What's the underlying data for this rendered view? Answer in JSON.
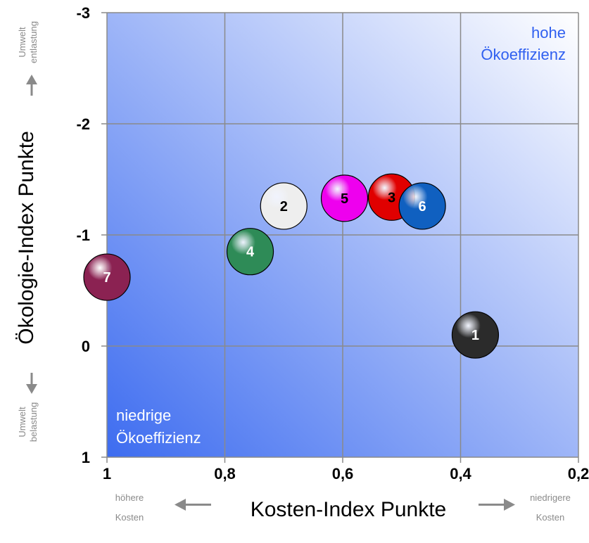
{
  "chart_data": {
    "type": "scatter",
    "title": "",
    "xlabel": "Kosten-Index Punkte",
    "ylabel": "Ökologie-Index Punkte",
    "xlim": [
      1.0,
      0.2
    ],
    "ylim": [
      1,
      -3
    ],
    "x_reversed": true,
    "y_reversed": true,
    "grid": true,
    "x_ticks": [
      1.0,
      0.8,
      0.6,
      0.4,
      0.2
    ],
    "y_ticks": [
      -3,
      -2,
      -1,
      0,
      1
    ],
    "x_tick_labels": [
      "1",
      "0,8",
      "0,6",
      "0,4",
      "0,2"
    ],
    "y_tick_labels": [
      "-3",
      "-2",
      "-1",
      "0",
      "1"
    ],
    "points": [
      {
        "label": "1",
        "x": 0.375,
        "y": -0.1,
        "color": "#2b2b2b",
        "text_color": "#ffffff"
      },
      {
        "label": "2",
        "x": 0.7,
        "y": -1.26,
        "color": "#eeeeee",
        "text_color": "#000000"
      },
      {
        "label": "3",
        "x": 0.517,
        "y": -1.34,
        "color": "#e00000",
        "text_color": "#000000"
      },
      {
        "label": "4",
        "x": 0.757,
        "y": -0.85,
        "color": "#2e8b57",
        "text_color": "#ffffff"
      },
      {
        "label": "5",
        "x": 0.597,
        "y": -1.33,
        "color": "#ee00ee",
        "text_color": "#000000"
      },
      {
        "label": "6",
        "x": 0.465,
        "y": -1.26,
        "color": "#1060c0",
        "text_color": "#ffffff"
      },
      {
        "label": "7",
        "x": 1.0,
        "y": -0.62,
        "color": "#8b2252",
        "text_color": "#ffffff"
      }
    ],
    "annotations": {
      "top_right": [
        "hohe",
        "Ökoeffizienz"
      ],
      "bottom_left": [
        "niedrige",
        "Ökoeffizienz"
      ],
      "y_top_note": [
        "Umwelt",
        "entlastung"
      ],
      "y_bottom_note": [
        "Umwelt",
        "belastung"
      ],
      "x_left_note": [
        "höhere",
        "Kosten"
      ],
      "x_right_note": [
        "niedrigere",
        "Kosten"
      ]
    },
    "colors": {
      "background_light": "#ffffff",
      "background_dark": "#3d6cf0",
      "annotation_top": "#3060f0",
      "annotation_bottom": "#ffffff",
      "grid": "#8a8a8a"
    }
  }
}
